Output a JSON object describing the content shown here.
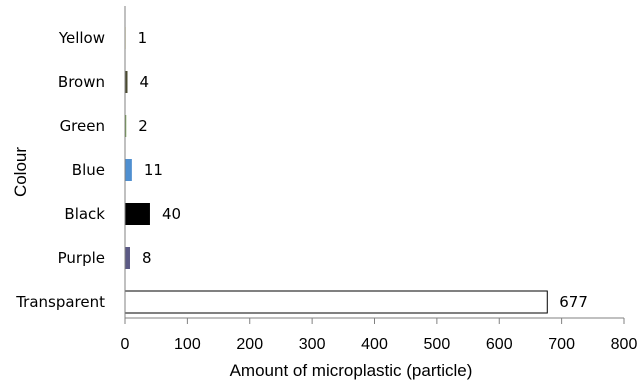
{
  "chart_data": {
    "type": "bar",
    "orientation": "horizontal",
    "categories": [
      "Yellow",
      "Brown",
      "Green",
      "Blue",
      "Black",
      "Purple",
      "Transparent"
    ],
    "values": [
      1,
      4,
      2,
      11,
      40,
      8,
      677
    ],
    "bar_colors": [
      "#d9c85a",
      "#4a4a30",
      "#6f9a4a",
      "#4f8fd0",
      "#000000",
      "#5c5a85",
      "#ffffff"
    ],
    "bar_stroke": "#000000",
    "xlabel": "Amount of microplastic (particle)",
    "ylabel": "Colour",
    "xlim": [
      0,
      800
    ],
    "xticks": [
      0,
      100,
      200,
      300,
      400,
      500,
      600,
      700,
      800
    ],
    "grid": false,
    "legend": "none"
  }
}
